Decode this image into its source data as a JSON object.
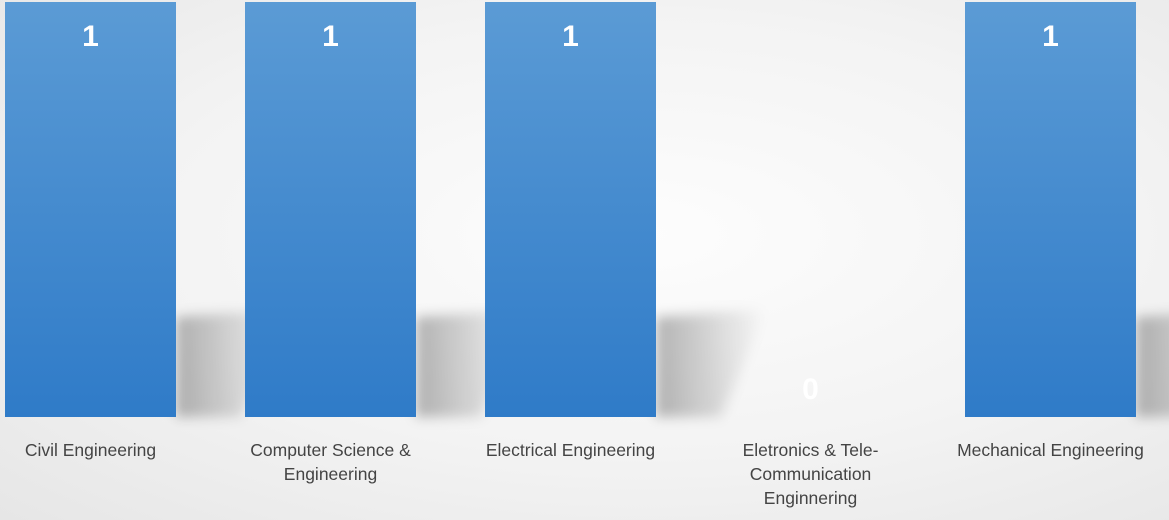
{
  "chart_data": {
    "type": "bar",
    "title": "",
    "xlabel": "",
    "ylabel": "",
    "categories": [
      "Civil Engineering",
      "Computer Science & Engineering",
      "Electrical Engineering",
      "Eletronics & Tele-Communication Enginnering",
      "Mechanical Engineering"
    ],
    "category_label_lines": [
      [
        "Civil Engineering"
      ],
      [
        "Computer Science &",
        "Engineering"
      ],
      [
        "Electrical Engineering"
      ],
      [
        "Eletronics & Tele-",
        "Communication",
        "Enginnering"
      ],
      [
        "Mechanical Engineering"
      ]
    ],
    "values": [
      1,
      1,
      1,
      0,
      1
    ],
    "data_labels": [
      "1",
      "1",
      "1",
      "0",
      "1"
    ],
    "ylim": [
      0,
      1
    ],
    "grid": false,
    "legend": "none",
    "colors": {
      "bar_top": "#5b9bd5",
      "bar_bottom": "#2f7bc8",
      "data_label": "#ffffff",
      "category_text": "#444444"
    }
  }
}
